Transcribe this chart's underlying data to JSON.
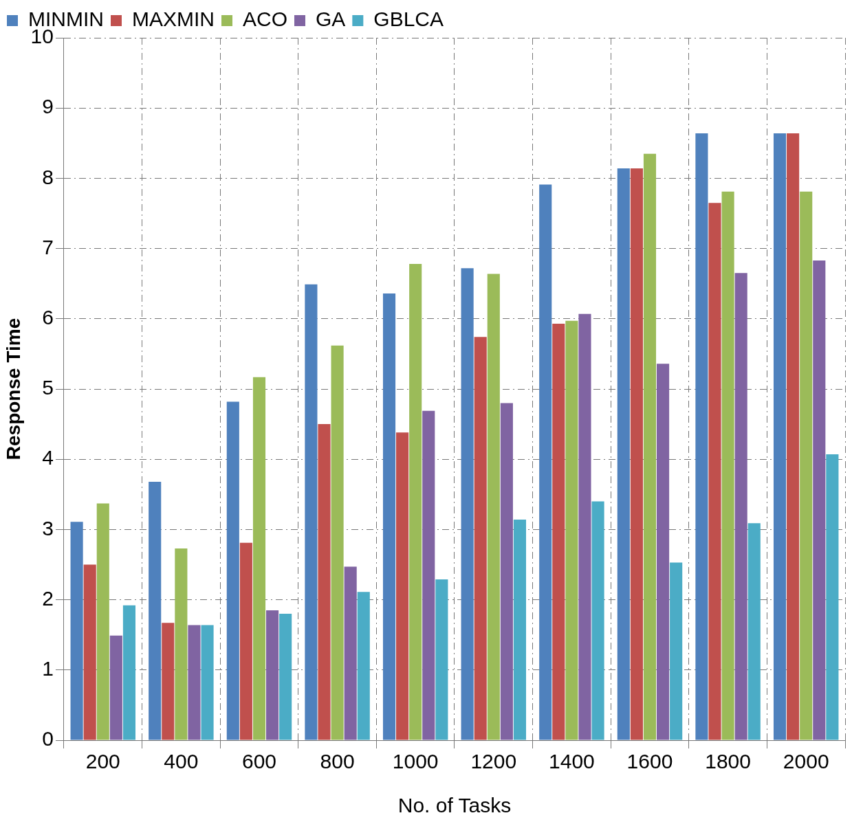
{
  "chart_data": {
    "type": "bar",
    "xlabel": "No. of Tasks",
    "ylabel": "Response Time",
    "categories": [
      "200",
      "400",
      "600",
      "800",
      "1000",
      "1200",
      "1400",
      "1600",
      "1800",
      "2000"
    ],
    "series": [
      {
        "name": "MINMIN",
        "color": "#4f81bd",
        "values": [
          3.11,
          3.68,
          4.82,
          6.49,
          6.36,
          6.72,
          7.91,
          8.14,
          8.64,
          8.64
        ]
      },
      {
        "name": "MAXMIN",
        "color": "#c0504d",
        "values": [
          2.5,
          1.67,
          2.81,
          4.5,
          4.38,
          5.74,
          5.93,
          8.14,
          7.65,
          8.64
        ]
      },
      {
        "name": "ACO",
        "color": "#9bbb59",
        "values": [
          3.37,
          2.73,
          5.17,
          5.62,
          6.78,
          6.64,
          5.97,
          8.35,
          7.81,
          7.81
        ]
      },
      {
        "name": "GA",
        "color": "#8064a2",
        "values": [
          1.49,
          1.64,
          1.85,
          2.47,
          4.69,
          4.8,
          6.07,
          5.36,
          6.65,
          6.83
        ]
      },
      {
        "name": "GBLCA",
        "color": "#4bacc6",
        "values": [
          1.92,
          1.64,
          1.8,
          2.11,
          2.29,
          3.14,
          3.4,
          2.53,
          3.09,
          4.07
        ]
      }
    ],
    "ylim": [
      0,
      10
    ],
    "yticks": [
      0,
      1,
      2,
      3,
      4,
      5,
      6,
      7,
      8,
      9,
      10
    ],
    "grid": true,
    "legend": "top left"
  }
}
